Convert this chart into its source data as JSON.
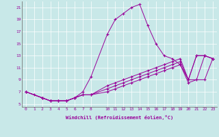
{
  "xlabel": "Windchill (Refroidissement éolien,°C)",
  "bg_color": "#c8e8e8",
  "line_color": "#990099",
  "spine_color": "#777777",
  "xlim": [
    -0.5,
    23.5
  ],
  "ylim": [
    4.5,
    22.0
  ],
  "xticks": [
    0,
    1,
    2,
    3,
    4,
    5,
    6,
    7,
    8,
    10,
    11,
    12,
    13,
    14,
    15,
    16,
    17,
    18,
    19,
    20,
    21,
    22,
    23
  ],
  "yticks": [
    5,
    7,
    9,
    11,
    13,
    15,
    17,
    19,
    21
  ],
  "series": [
    {
      "x": [
        0,
        1,
        2,
        3,
        4,
        5,
        6,
        7,
        8,
        10,
        11,
        12,
        13,
        14,
        15,
        16,
        17,
        18,
        19,
        20,
        21,
        22,
        23
      ],
      "y": [
        7,
        6.5,
        6.0,
        5.5,
        5.5,
        5.5,
        6.0,
        7.0,
        9.5,
        16.5,
        19.0,
        20.0,
        21.0,
        21.5,
        18.0,
        15.0,
        13.0,
        12.5,
        11.5,
        9.0,
        13.0,
        13.0,
        12.5
      ]
    },
    {
      "x": [
        0,
        2,
        3,
        4,
        5,
        6,
        7,
        8,
        10,
        11,
        12,
        13,
        14,
        15,
        16,
        17,
        18,
        19,
        20,
        21,
        22,
        23
      ],
      "y": [
        7,
        6.0,
        5.5,
        5.5,
        5.5,
        6.0,
        6.5,
        6.5,
        8.0,
        8.5,
        9.0,
        9.5,
        10.0,
        10.5,
        11.0,
        11.5,
        12.0,
        12.5,
        9.0,
        13.0,
        13.0,
        12.5
      ]
    },
    {
      "x": [
        0,
        2,
        3,
        4,
        5,
        6,
        7,
        8,
        10,
        11,
        12,
        13,
        14,
        15,
        16,
        17,
        18,
        19,
        20,
        21,
        22,
        23
      ],
      "y": [
        7,
        6.0,
        5.5,
        5.5,
        5.5,
        6.0,
        6.5,
        6.5,
        7.5,
        8.0,
        8.5,
        9.0,
        9.5,
        10.0,
        10.5,
        11.0,
        11.5,
        12.0,
        9.0,
        9.0,
        13.0,
        12.5
      ]
    },
    {
      "x": [
        0,
        2,
        3,
        4,
        5,
        6,
        7,
        8,
        10,
        11,
        12,
        13,
        14,
        15,
        16,
        17,
        18,
        19,
        20,
        21,
        22,
        23
      ],
      "y": [
        7,
        6.0,
        5.5,
        5.5,
        5.5,
        6.0,
        6.5,
        6.5,
        7.0,
        7.5,
        8.0,
        8.5,
        9.0,
        9.5,
        10.0,
        10.5,
        11.0,
        11.5,
        8.5,
        9.0,
        9.0,
        12.5
      ]
    }
  ],
  "figsize": [
    3.2,
    2.0
  ],
  "dpi": 100
}
